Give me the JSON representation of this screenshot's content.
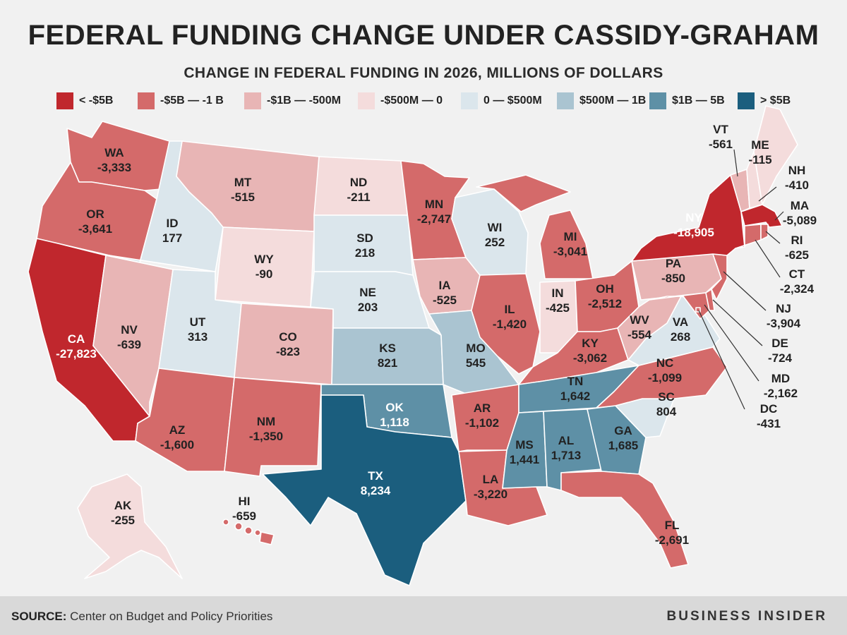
{
  "title": "FEDERAL FUNDING CHANGE UNDER CASSIDY-GRAHAM",
  "subtitle": "CHANGE IN FEDERAL FUNDING IN 2026, MILLIONS OF DOLLARS",
  "colors": {
    "c1": "#c0272d",
    "c2": "#d46a6a",
    "c3": "#e8b5b5",
    "c4": "#f4dcdc",
    "c5": "#dbe6ec",
    "c6": "#aac4d1",
    "c7": "#5e90a6",
    "c8": "#1b5e7e",
    "background": "#f1f1f1",
    "footer_bg": "#d9d9d9"
  },
  "legend": [
    {
      "label": "< -$5B",
      "color": "#c0272d"
    },
    {
      "label": "-$5B — -1 B",
      "color": "#d46a6a"
    },
    {
      "label": "-$1B — -500M",
      "color": "#e8b5b5"
    },
    {
      "label": "-$500M — 0",
      "color": "#f4dcdc"
    },
    {
      "label": "0 — $500M",
      "color": "#dbe6ec"
    },
    {
      "label": "$500M — 1B",
      "color": "#aac4d1"
    },
    {
      "label": "$1B — 5B",
      "color": "#5e90a6"
    },
    {
      "label": "> $5B",
      "color": "#1b5e7e"
    }
  ],
  "states": [
    {
      "abbr": "WA",
      "value": "-3,333"
    },
    {
      "abbr": "OR",
      "value": "-3,641"
    },
    {
      "abbr": "CA",
      "value": "-27,823"
    },
    {
      "abbr": "ID",
      "value": "177"
    },
    {
      "abbr": "NV",
      "value": "-639"
    },
    {
      "abbr": "MT",
      "value": "-515"
    },
    {
      "abbr": "WY",
      "value": "-90"
    },
    {
      "abbr": "UT",
      "value": "313"
    },
    {
      "abbr": "AZ",
      "value": "-1,600"
    },
    {
      "abbr": "CO",
      "value": "-823"
    },
    {
      "abbr": "NM",
      "value": "-1,350"
    },
    {
      "abbr": "ND",
      "value": "-211"
    },
    {
      "abbr": "SD",
      "value": "218"
    },
    {
      "abbr": "NE",
      "value": "203"
    },
    {
      "abbr": "KS",
      "value": "821"
    },
    {
      "abbr": "OK",
      "value": "1,118"
    },
    {
      "abbr": "TX",
      "value": "8,234"
    },
    {
      "abbr": "MN",
      "value": "-2,747"
    },
    {
      "abbr": "IA",
      "value": "-525"
    },
    {
      "abbr": "MO",
      "value": "545"
    },
    {
      "abbr": "AR",
      "value": "-1,102"
    },
    {
      "abbr": "LA",
      "value": "-3,220"
    },
    {
      "abbr": "WI",
      "value": "252"
    },
    {
      "abbr": "IL",
      "value": "-1,420"
    },
    {
      "abbr": "MI",
      "value": "-3,041"
    },
    {
      "abbr": "IN",
      "value": "-425"
    },
    {
      "abbr": "OH",
      "value": "-2,512"
    },
    {
      "abbr": "KY",
      "value": "-3,062"
    },
    {
      "abbr": "TN",
      "value": "1,642"
    },
    {
      "abbr": "MS",
      "value": "1,441"
    },
    {
      "abbr": "AL",
      "value": "1,713"
    },
    {
      "abbr": "GA",
      "value": "1,685"
    },
    {
      "abbr": "FL",
      "value": "-2,691"
    },
    {
      "abbr": "SC",
      "value": "804"
    },
    {
      "abbr": "NC",
      "value": "-1,099"
    },
    {
      "abbr": "VA",
      "value": "268"
    },
    {
      "abbr": "WV",
      "value": "-554"
    },
    {
      "abbr": "PA",
      "value": "-850"
    },
    {
      "abbr": "NY",
      "value": "-18,905"
    },
    {
      "abbr": "VT",
      "value": "-561"
    },
    {
      "abbr": "ME",
      "value": "-115"
    },
    {
      "abbr": "NH",
      "value": "-410"
    },
    {
      "abbr": "MA",
      "value": "-5,089"
    },
    {
      "abbr": "RI",
      "value": "-625"
    },
    {
      "abbr": "CT",
      "value": "-2,324"
    },
    {
      "abbr": "NJ",
      "value": "-3,904"
    },
    {
      "abbr": "DE",
      "value": "-724"
    },
    {
      "abbr": "MD",
      "value": "-2,162"
    },
    {
      "abbr": "DC",
      "value": "-431"
    },
    {
      "abbr": "AK",
      "value": "-255"
    },
    {
      "abbr": "HI",
      "value": "-659"
    }
  ],
  "footer": {
    "source_label": "SOURCE:",
    "source_text": "Center on Budget and Policy Priorities",
    "brand": "BUSINESS INSIDER"
  }
}
